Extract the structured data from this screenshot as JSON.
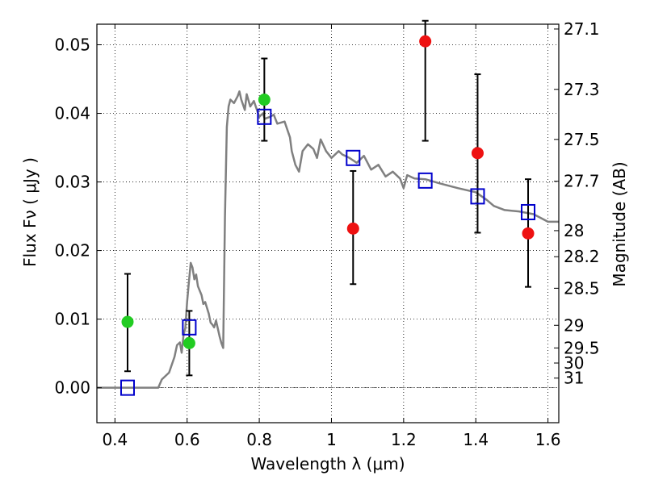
{
  "chart_data": {
    "type": "scatter",
    "xlabel": "Wavelength  λ (μm)",
    "ylabel_left": "Flux  Fν  ( μJy )",
    "ylabel_right": "Magnitude (AB)",
    "xlim": [
      0.35,
      1.63
    ],
    "ylim": [
      -0.0051,
      0.053
    ],
    "grid": true,
    "x_ticks": [
      0.4,
      0.6,
      0.8,
      1.0,
      1.2,
      1.4,
      1.6
    ],
    "x_tick_labels": [
      "0.4",
      "0.6",
      "0.8",
      "1",
      "1.2",
      "1.4",
      "1.6"
    ],
    "y_ticks": [
      0.0,
      0.01,
      0.02,
      0.03,
      0.04,
      0.05
    ],
    "y_tick_labels": [
      "0.00",
      "0.01",
      "0.02",
      "0.03",
      "0.04",
      "0.05"
    ],
    "right_ticks": [
      {
        "label": "27.1",
        "flux": 0.0523
      },
      {
        "label": "27.3",
        "flux": 0.0435
      },
      {
        "label": "27.5",
        "flux": 0.0362
      },
      {
        "label": "27.7",
        "flux": 0.0301
      },
      {
        "label": "28",
        "flux": 0.0229
      },
      {
        "label": "28.2",
        "flux": 0.0191
      },
      {
        "label": "28.5",
        "flux": 0.0145
      },
      {
        "label": "29",
        "flux": 0.0091
      },
      {
        "label": "29.5",
        "flux": 0.0058
      },
      {
        "label": "30",
        "flux": 0.0036
      },
      {
        "label": "31",
        "flux": 0.0014
      }
    ],
    "model_sed": {
      "color": "#808080",
      "points": [
        [
          0.35,
          0.0
        ],
        [
          0.52,
          0.0
        ],
        [
          0.53,
          0.0012
        ],
        [
          0.55,
          0.0022
        ],
        [
          0.565,
          0.0045
        ],
        [
          0.572,
          0.0062
        ],
        [
          0.58,
          0.0066
        ],
        [
          0.585,
          0.0051
        ],
        [
          0.59,
          0.0077
        ],
        [
          0.595,
          0.0087
        ],
        [
          0.6,
          0.0125
        ],
        [
          0.605,
          0.0155
        ],
        [
          0.61,
          0.0182
        ],
        [
          0.615,
          0.0175
        ],
        [
          0.62,
          0.0158
        ],
        [
          0.625,
          0.0165
        ],
        [
          0.63,
          0.0148
        ],
        [
          0.64,
          0.0135
        ],
        [
          0.645,
          0.0122
        ],
        [
          0.65,
          0.0125
        ],
        [
          0.66,
          0.0108
        ],
        [
          0.665,
          0.0095
        ],
        [
          0.67,
          0.0092
        ],
        [
          0.675,
          0.0088
        ],
        [
          0.68,
          0.0098
        ],
        [
          0.69,
          0.0075
        ],
        [
          0.695,
          0.0065
        ],
        [
          0.7,
          0.0058
        ],
        [
          0.705,
          0.025
        ],
        [
          0.71,
          0.038
        ],
        [
          0.715,
          0.041
        ],
        [
          0.72,
          0.042
        ],
        [
          0.73,
          0.0415
        ],
        [
          0.74,
          0.0425
        ],
        [
          0.745,
          0.0432
        ],
        [
          0.75,
          0.042
        ],
        [
          0.76,
          0.0405
        ],
        [
          0.765,
          0.0428
        ],
        [
          0.775,
          0.041
        ],
        [
          0.785,
          0.0418
        ],
        [
          0.8,
          0.0395
        ],
        [
          0.81,
          0.04
        ],
        [
          0.815,
          0.0392
        ],
        [
          0.83,
          0.0395
        ],
        [
          0.84,
          0.0398
        ],
        [
          0.85,
          0.0385
        ],
        [
          0.87,
          0.0388
        ],
        [
          0.885,
          0.0365
        ],
        [
          0.89,
          0.0345
        ],
        [
          0.9,
          0.0325
        ],
        [
          0.91,
          0.0315
        ],
        [
          0.92,
          0.0345
        ],
        [
          0.935,
          0.0355
        ],
        [
          0.95,
          0.0348
        ],
        [
          0.96,
          0.0335
        ],
        [
          0.97,
          0.0362
        ],
        [
          0.985,
          0.0345
        ],
        [
          1.0,
          0.0335
        ],
        [
          1.02,
          0.0345
        ],
        [
          1.03,
          0.034
        ],
        [
          1.05,
          0.0335
        ],
        [
          1.07,
          0.0328
        ],
        [
          1.09,
          0.0338
        ],
        [
          1.11,
          0.0318
        ],
        [
          1.13,
          0.0325
        ],
        [
          1.15,
          0.0308
        ],
        [
          1.17,
          0.0315
        ],
        [
          1.19,
          0.0305
        ],
        [
          1.2,
          0.0291
        ],
        [
          1.21,
          0.031
        ],
        [
          1.23,
          0.0305
        ],
        [
          1.26,
          0.0304
        ],
        [
          1.3,
          0.0298
        ],
        [
          1.35,
          0.0291
        ],
        [
          1.4,
          0.0285
        ],
        [
          1.43,
          0.0274
        ],
        [
          1.45,
          0.0265
        ],
        [
          1.48,
          0.0259
        ],
        [
          1.52,
          0.0257
        ],
        [
          1.56,
          0.0253
        ],
        [
          1.6,
          0.0242
        ],
        [
          1.63,
          0.0242
        ]
      ]
    },
    "model_photometry": {
      "color": "#0000cc",
      "marker": "open-square",
      "x": [
        0.435,
        0.606,
        0.814,
        1.06,
        1.26,
        1.405,
        1.545
      ],
      "y": [
        0.0,
        0.0088,
        0.0395,
        0.0335,
        0.0302,
        0.0279,
        0.0256
      ]
    },
    "observed_green": {
      "color": "#22cc22",
      "marker": "filled-circle",
      "x": [
        0.435,
        0.606,
        0.814
      ],
      "y": [
        0.0096,
        0.0065,
        0.042
      ],
      "yerr_low": [
        0.0024,
        0.0018,
        0.036
      ],
      "yerr_high": [
        0.0166,
        0.0112,
        0.048
      ]
    },
    "observed_red": {
      "color": "#ee1111",
      "marker": "filled-circle",
      "x": [
        1.06,
        1.26,
        1.405,
        1.545
      ],
      "y": [
        0.0232,
        0.0505,
        0.0342,
        0.0225
      ],
      "yerr_low": [
        0.0151,
        0.036,
        0.0226,
        0.0147
      ],
      "yerr_high": [
        0.0316,
        0.0535,
        0.0457,
        0.0304
      ]
    }
  }
}
